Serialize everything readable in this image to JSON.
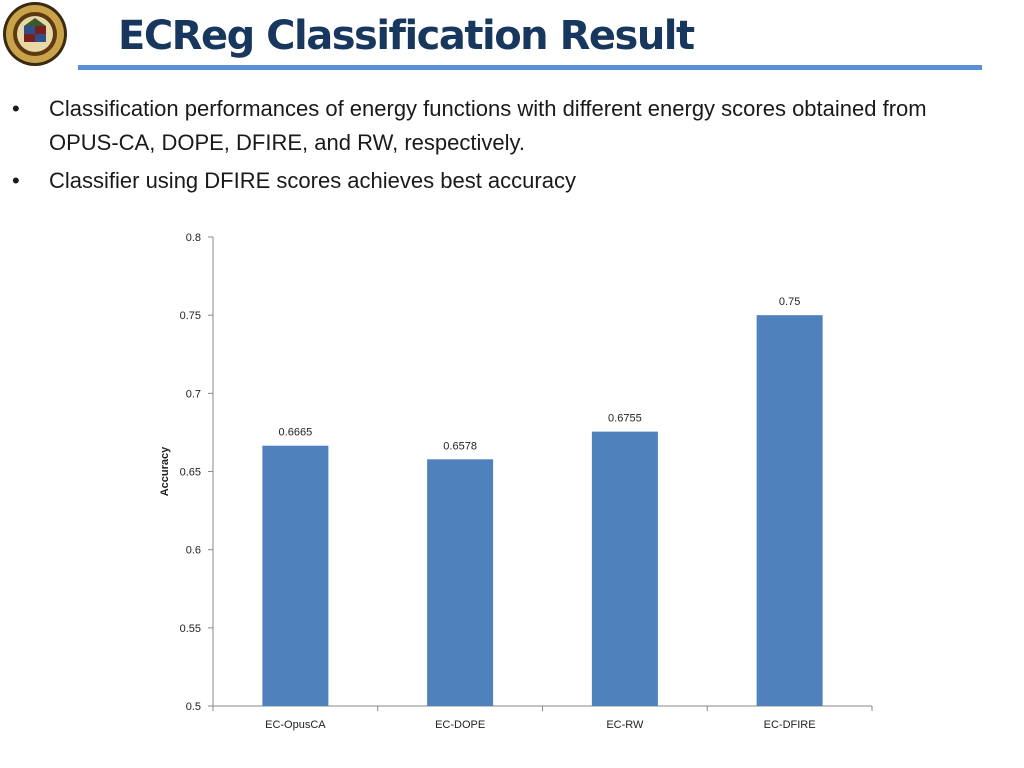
{
  "slide": {
    "title": "ECReg Classification Result",
    "bullets": [
      "Classification performances of energy functions with different energy scores obtained from OPUS-CA, DOPE, DFIRE, and RW, respectively.",
      "Classifier using DFIRE scores achieves best accuracy"
    ],
    "bullet_marker": "•",
    "logo_icon": "university-seal-icon",
    "colors": {
      "title": "#17375e",
      "rule": "#5b8fd4",
      "bar": "#4f81bd"
    }
  },
  "chart_data": {
    "type": "bar",
    "categories": [
      "EC-OpusCA",
      "EC-DOPE",
      "EC-RW",
      "EC-DFIRE"
    ],
    "values": [
      0.6665,
      0.6578,
      0.6755,
      0.75
    ],
    "value_labels": [
      "0.6665",
      "0.6578",
      "0.6755",
      "0.75"
    ],
    "title": "",
    "xlabel": "",
    "ylabel": "Accuracy",
    "ylim": [
      0.5,
      0.8
    ],
    "yticks": [
      0.5,
      0.55,
      0.6,
      0.65,
      0.7,
      0.75,
      0.8
    ],
    "ytick_labels": [
      "0.5",
      "0.55",
      "0.6",
      "0.65",
      "0.7",
      "0.75",
      "0.8"
    ],
    "grid": false,
    "legend": "none",
    "bar_color": "#4f81bd"
  }
}
